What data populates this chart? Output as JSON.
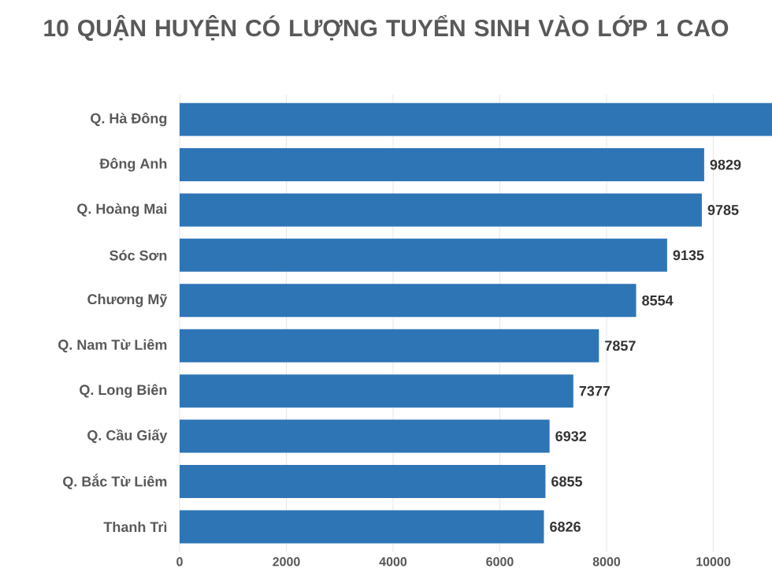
{
  "chart_data": {
    "type": "bar",
    "orientation": "horizontal",
    "title": "10 QUẬN HUYỆN CÓ LƯỢNG TUYỂN SINH VÀO LỚP 1 CAO",
    "categories": [
      "Q. Hà Đông",
      "Đông Anh",
      "Q. Hoàng Mai",
      "Sóc Sơn",
      "Chương Mỹ",
      "Q. Nam Từ Liêm",
      "Q. Long Biên",
      "Q. Cầu Giấy",
      "Q. Bắc Từ Liêm",
      "Thanh Trì"
    ],
    "values": [
      11100,
      9829,
      9785,
      9135,
      8554,
      7857,
      7377,
      6932,
      6855,
      6826
    ],
    "value_labels": [
      null,
      "9829",
      "9785",
      "9135",
      "8554",
      "7857",
      "7377",
      "6932",
      "6855",
      "6826"
    ],
    "color": "#2e75b6",
    "xlim": [
      0,
      11100
    ],
    "xticks": [
      0,
      2000,
      4000,
      6000,
      8000,
      10000
    ],
    "grid": "x"
  }
}
